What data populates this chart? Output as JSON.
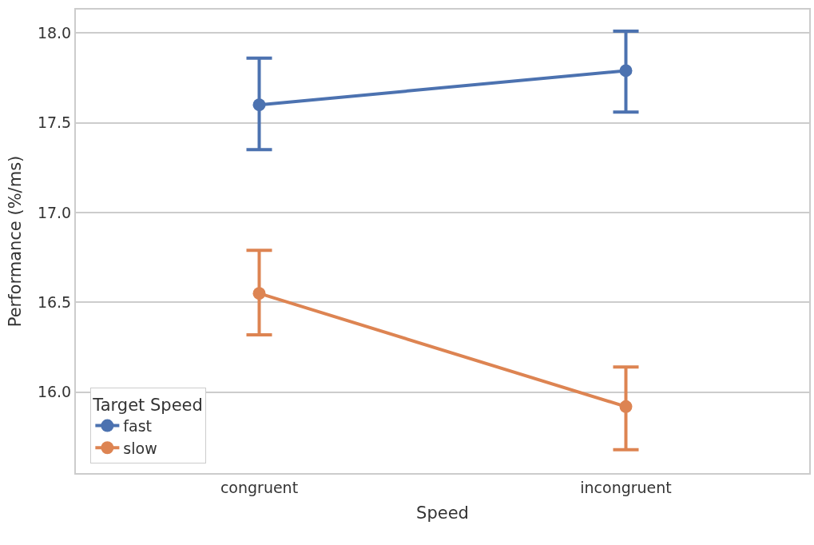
{
  "chart_data": {
    "type": "line",
    "xlabel": "Speed",
    "ylabel": "Performance (%/ms)",
    "legend_title": "Target Speed",
    "categories": [
      "congruent",
      "incongruent"
    ],
    "series": [
      {
        "name": "fast",
        "color": "#4c72b0",
        "values": [
          17.6,
          17.79
        ],
        "errors": [
          [
            17.35,
            17.86
          ],
          [
            17.56,
            18.01
          ]
        ]
      },
      {
        "name": "slow",
        "color": "#dd8452",
        "values": [
          16.55,
          15.92
        ],
        "errors": [
          [
            16.32,
            16.79
          ],
          [
            15.68,
            16.14
          ]
        ]
      }
    ],
    "ylim": [
      15.55,
      18.13
    ],
    "yticks": [
      {
        "value": 16,
        "label": "16.0"
      },
      {
        "value": 16.5,
        "label": "16.5"
      },
      {
        "value": 17,
        "label": "17.0"
      },
      {
        "value": 17.5,
        "label": "17.5"
      },
      {
        "value": 18,
        "label": "18.0"
      }
    ],
    "grid": "y",
    "legend": "bottom left",
    "marker": "circle",
    "line_style": "solid"
  }
}
